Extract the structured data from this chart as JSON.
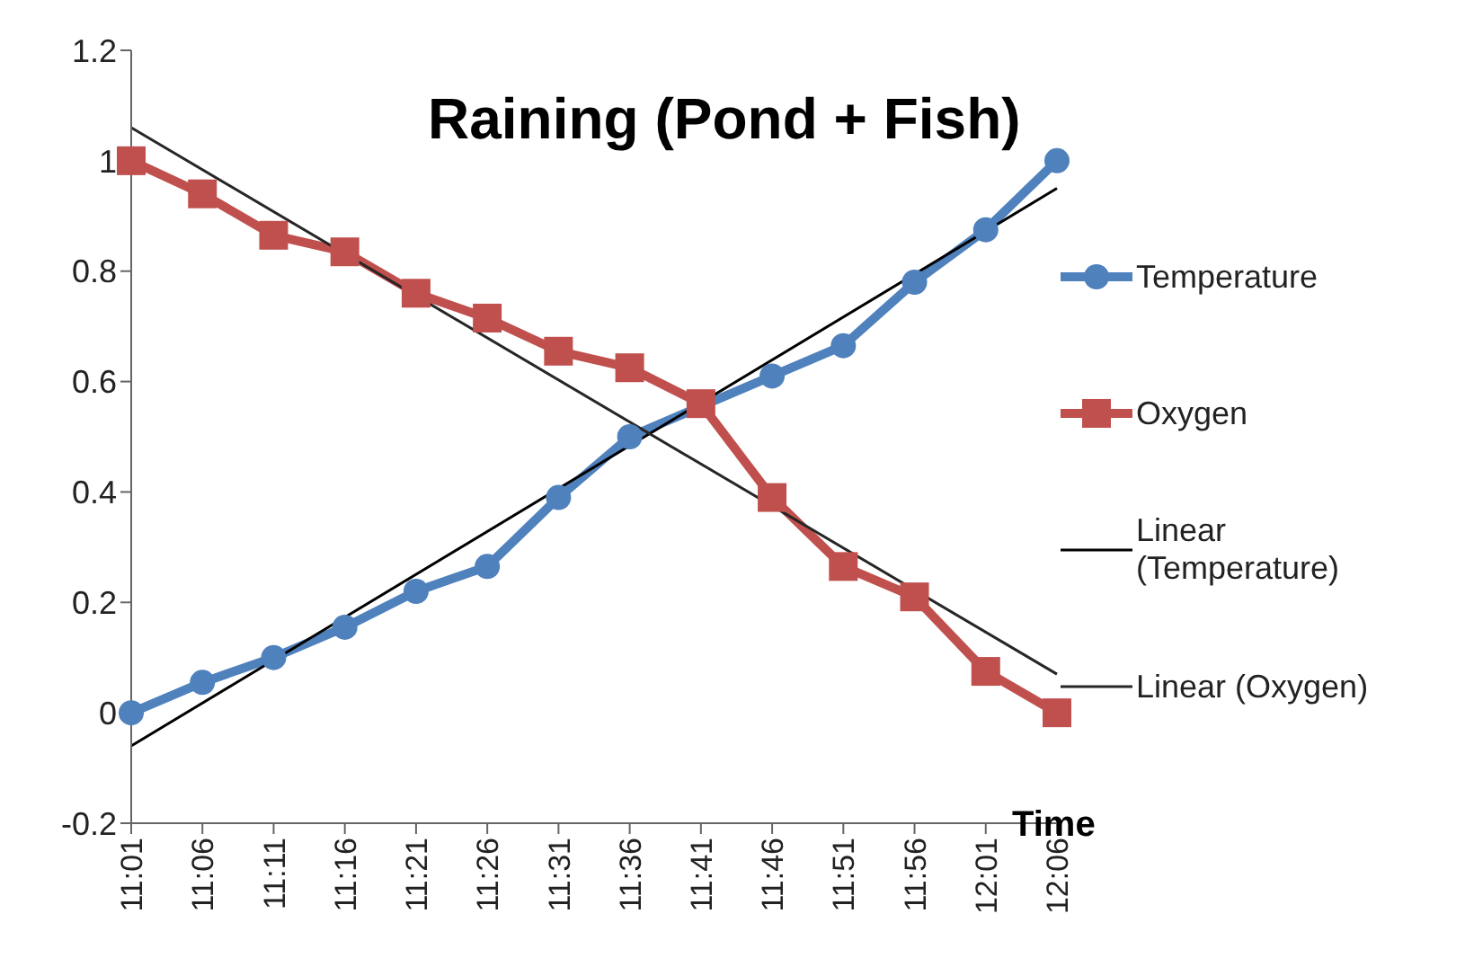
{
  "chart_data": {
    "type": "line",
    "title": "Raining (Pond + Fish)",
    "xlabel": "Time",
    "categories": [
      "11:01",
      "11:06",
      "11:11",
      "11:16",
      "11:21",
      "11:26",
      "11:31",
      "11:36",
      "11:41",
      "11:46",
      "11:51",
      "11:56",
      "12:01",
      "12:06"
    ],
    "series": [
      {
        "name": "Temperature",
        "color": "#4f81bd",
        "marker": "circle",
        "values": [
          0,
          0.055,
          0.1,
          0.155,
          0.22,
          0.265,
          0.39,
          0.5,
          null,
          0.61,
          0.665,
          0.78,
          0.875,
          1.0
        ]
      },
      {
        "name": "Oxygen",
        "color": "#c0504d",
        "marker": "square",
        "values": [
          1.0,
          0.94,
          0.865,
          0.835,
          0.76,
          0.715,
          0.655,
          0.625,
          0.56,
          0.39,
          0.265,
          0.21,
          0.075,
          0
        ]
      },
      {
        "name": "Linear (Temperature)",
        "color": "#000000",
        "marker": "none",
        "x": [
          "11:01",
          "12:06"
        ],
        "values": [
          -0.06,
          0.95
        ]
      },
      {
        "name": "Linear (Oxygen)",
        "color": "#262626",
        "marker": "none",
        "x": [
          "11:01",
          "12:06"
        ],
        "values": [
          1.06,
          0.07
        ]
      }
    ],
    "ylim": [
      -0.2,
      1.2
    ],
    "yticks": [
      -0.2,
      0,
      0.2,
      0.4,
      0.6,
      0.8,
      1,
      1.2
    ],
    "grid": false,
    "legend": "right"
  }
}
